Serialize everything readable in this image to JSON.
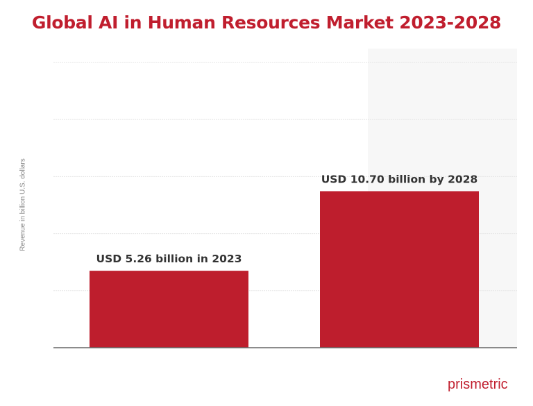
{
  "chart_data": {
    "type": "bar",
    "title": "Global AI in Human Resources Market 2023-2028",
    "ylabel": "Revenue in billion U.S. dollars",
    "xlabel": "",
    "categories": [
      "2023",
      "2028"
    ],
    "values": [
      5.26,
      10.7
    ],
    "data_labels": [
      "USD 5.26 billion in 2023",
      "USD 10.70 billion by 2028"
    ],
    "ylim": [
      0,
      19.5
    ],
    "grid": true,
    "bar_color": "#be1e2d"
  },
  "brand": "prismetric"
}
